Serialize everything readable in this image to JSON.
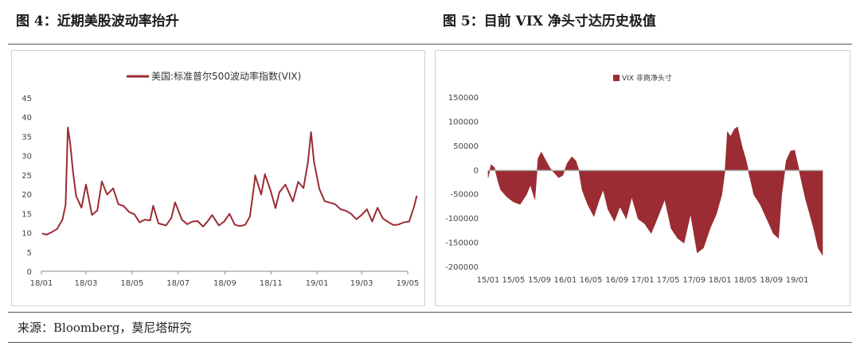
{
  "left_title": "图 4：近期美股波动率抬升",
  "right_title": "图 5：目前 VIX 净头寸达历史极值",
  "source": "来源：Bloomberg，莫尼塔研究",
  "chart_data": [
    {
      "type": "line",
      "legend": [
        "美国:标准普尔500波动率指数(VIX)"
      ],
      "x_ticks": [
        "18/01",
        "18/03",
        "18/05",
        "18/07",
        "18/09",
        "18/11",
        "19/01",
        "19/03",
        "19/05"
      ],
      "y_ticks": [
        "0",
        "5",
        "10",
        "15",
        "20",
        "25",
        "30",
        "35",
        "40",
        "45"
      ],
      "ylim": [
        0,
        45
      ],
      "color": "#9b2c33",
      "series": [
        {
          "name": "美国:标准普尔500波动率指数(VIX)",
          "points": [
            [
              "2018-01-02",
              9.8
            ],
            [
              "2018-01-08",
              9.5
            ],
            [
              "2018-01-15",
              10.2
            ],
            [
              "2018-01-22",
              11.0
            ],
            [
              "2018-01-29",
              13.5
            ],
            [
              "2018-02-02",
              17.3
            ],
            [
              "2018-02-05",
              37.3
            ],
            [
              "2018-02-08",
              33.5
            ],
            [
              "2018-02-12",
              25.6
            ],
            [
              "2018-02-16",
              19.5
            ],
            [
              "2018-02-23",
              16.5
            ],
            [
              "2018-03-01",
              22.5
            ],
            [
              "2018-03-09",
              14.6
            ],
            [
              "2018-03-16",
              15.8
            ],
            [
              "2018-03-22",
              23.3
            ],
            [
              "2018-03-29",
              19.9
            ],
            [
              "2018-04-06",
              21.5
            ],
            [
              "2018-04-13",
              17.4
            ],
            [
              "2018-04-20",
              16.9
            ],
            [
              "2018-04-27",
              15.4
            ],
            [
              "2018-05-04",
              14.8
            ],
            [
              "2018-05-11",
              12.7
            ],
            [
              "2018-05-18",
              13.4
            ],
            [
              "2018-05-25",
              13.2
            ],
            [
              "2018-05-29",
              17.0
            ],
            [
              "2018-06-05",
              12.4
            ],
            [
              "2018-06-15",
              11.9
            ],
            [
              "2018-06-22",
              13.8
            ],
            [
              "2018-06-27",
              17.9
            ],
            [
              "2018-07-06",
              13.4
            ],
            [
              "2018-07-13",
              12.2
            ],
            [
              "2018-07-20",
              12.9
            ],
            [
              "2018-07-27",
              13.0
            ],
            [
              "2018-08-03",
              11.6
            ],
            [
              "2018-08-10",
              13.2
            ],
            [
              "2018-08-15",
              14.6
            ],
            [
              "2018-08-24",
              11.9
            ],
            [
              "2018-08-31",
              12.9
            ],
            [
              "2018-09-07",
              14.9
            ],
            [
              "2018-09-14",
              12.1
            ],
            [
              "2018-09-21",
              11.7
            ],
            [
              "2018-09-28",
              12.1
            ],
            [
              "2018-10-04",
              14.2
            ],
            [
              "2018-10-10",
              22.9
            ],
            [
              "2018-10-11",
              24.9
            ],
            [
              "2018-10-19",
              19.9
            ],
            [
              "2018-10-24",
              25.2
            ],
            [
              "2018-10-31",
              21.2
            ],
            [
              "2018-11-07",
              16.4
            ],
            [
              "2018-11-12",
              20.5
            ],
            [
              "2018-11-20",
              22.5
            ],
            [
              "2018-11-30",
              18.1
            ],
            [
              "2018-12-07",
              23.2
            ],
            [
              "2018-12-14",
              21.6
            ],
            [
              "2018-12-20",
              28.4
            ],
            [
              "2018-12-24",
              36.1
            ],
            [
              "2018-12-28",
              28.3
            ],
            [
              "2019-01-04",
              21.4
            ],
            [
              "2019-01-11",
              18.2
            ],
            [
              "2019-01-18",
              17.8
            ],
            [
              "2019-01-25",
              17.4
            ],
            [
              "2019-02-01",
              16.1
            ],
            [
              "2019-02-08",
              15.7
            ],
            [
              "2019-02-15",
              14.9
            ],
            [
              "2019-02-22",
              13.5
            ],
            [
              "2019-03-01",
              14.6
            ],
            [
              "2019-03-08",
              16.1
            ],
            [
              "2019-03-15",
              12.9
            ],
            [
              "2019-03-22",
              16.5
            ],
            [
              "2019-03-29",
              13.7
            ],
            [
              "2019-04-05",
              12.8
            ],
            [
              "2019-04-12",
              12.0
            ],
            [
              "2019-04-18",
              12.1
            ],
            [
              "2019-04-26",
              12.7
            ],
            [
              "2019-05-03",
              12.9
            ],
            [
              "2019-05-07",
              15.4
            ],
            [
              "2019-05-09",
              16.5
            ],
            [
              "2019-05-13",
              19.6
            ]
          ]
        }
      ]
    },
    {
      "type": "area",
      "legend": [
        "VIX 非商净头寸"
      ],
      "x_ticks": [
        "15/01",
        "15/05",
        "15/09",
        "16/01",
        "16/05",
        "16/09",
        "17/01",
        "17/05",
        "17/09",
        "18/01",
        "18/05",
        "18/09",
        "19/01"
      ],
      "y_ticks": [
        "150000",
        "100000",
        "50000",
        "0",
        "-50000",
        "-100000",
        "-150000",
        "-200000"
      ],
      "ylim": [
        -200000,
        150000
      ],
      "color": "#9b2c33",
      "series": [
        {
          "name": "VIX 非商净头寸",
          "points": [
            [
              "2015-01-01",
              -15000
            ],
            [
              "2015-01-15",
              12000
            ],
            [
              "2015-02-01",
              5000
            ],
            [
              "2015-02-15",
              -20000
            ],
            [
              "2015-03-01",
              -40000
            ],
            [
              "2015-04-01",
              -55000
            ],
            [
              "2015-05-01",
              -65000
            ],
            [
              "2015-06-01",
              -70000
            ],
            [
              "2015-07-01",
              -50000
            ],
            [
              "2015-07-20",
              -30000
            ],
            [
              "2015-08-10",
              -60000
            ],
            [
              "2015-08-25",
              25000
            ],
            [
              "2015-09-10",
              38000
            ],
            [
              "2015-10-01",
              20000
            ],
            [
              "2015-10-20",
              5000
            ],
            [
              "2015-11-10",
              -5000
            ],
            [
              "2015-12-01",
              -15000
            ],
            [
              "2015-12-20",
              -10000
            ],
            [
              "2016-01-10",
              15000
            ],
            [
              "2016-02-01",
              28000
            ],
            [
              "2016-02-20",
              20000
            ],
            [
              "2016-03-05",
              0
            ],
            [
              "2016-03-20",
              -40000
            ],
            [
              "2016-04-15",
              -70000
            ],
            [
              "2016-05-15",
              -95000
            ],
            [
              "2016-06-10",
              -60000
            ],
            [
              "2016-06-28",
              -40000
            ],
            [
              "2016-07-20",
              -80000
            ],
            [
              "2016-08-20",
              -105000
            ],
            [
              "2016-09-15",
              -75000
            ],
            [
              "2016-10-15",
              -100000
            ],
            [
              "2016-11-10",
              -55000
            ],
            [
              "2016-12-10",
              -100000
            ],
            [
              "2017-01-10",
              -110000
            ],
            [
              "2017-02-10",
              -130000
            ],
            [
              "2017-03-10",
              -100000
            ],
            [
              "2017-04-15",
              -60000
            ],
            [
              "2017-05-15",
              -120000
            ],
            [
              "2017-06-15",
              -140000
            ],
            [
              "2017-07-15",
              -150000
            ],
            [
              "2017-08-15",
              -90000
            ],
            [
              "2017-09-15",
              -170000
            ],
            [
              "2017-10-15",
              -160000
            ],
            [
              "2017-11-15",
              -120000
            ],
            [
              "2017-12-15",
              -90000
            ],
            [
              "2018-01-10",
              -50000
            ],
            [
              "2018-01-25",
              0
            ],
            [
              "2018-02-05",
              80000
            ],
            [
              "2018-02-20",
              70000
            ],
            [
              "2018-03-10",
              85000
            ],
            [
              "2018-03-25",
              90000
            ],
            [
              "2018-04-15",
              50000
            ],
            [
              "2018-05-05",
              20000
            ],
            [
              "2018-05-20",
              -10000
            ],
            [
              "2018-06-10",
              -50000
            ],
            [
              "2018-07-10",
              -70000
            ],
            [
              "2018-08-10",
              -100000
            ],
            [
              "2018-09-10",
              -130000
            ],
            [
              "2018-10-05",
              -140000
            ],
            [
              "2018-10-20",
              -50000
            ],
            [
              "2018-11-10",
              20000
            ],
            [
              "2018-12-01",
              40000
            ],
            [
              "2018-12-20",
              42000
            ],
            [
              "2019-01-05",
              10000
            ],
            [
              "2019-01-20",
              -20000
            ],
            [
              "2019-02-10",
              -60000
            ],
            [
              "2019-03-01",
              -90000
            ],
            [
              "2019-03-20",
              -120000
            ],
            [
              "2019-04-10",
              -160000
            ],
            [
              "2019-05-01",
              -175000
            ]
          ]
        }
      ]
    }
  ]
}
